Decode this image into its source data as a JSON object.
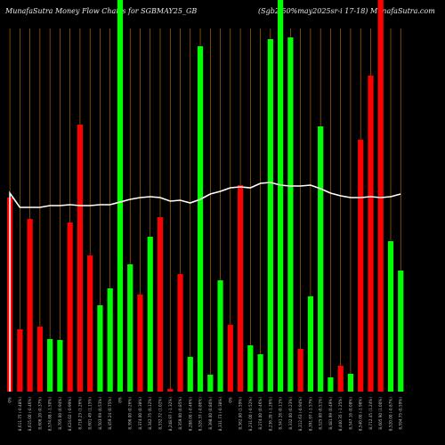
{
  "header": {
    "title": "MunafaSutra  Money Flow  Charts for SGBMAY25_GB",
    "right": "(Sgb2.50%may2025sr-i   17-18) MunafaSutra.com"
  },
  "colors": {
    "up": "#00ff00",
    "down": "#ff0000",
    "grid": "#c87800",
    "line": "#ffffff",
    "background": "#000000"
  },
  "chart_data": {
    "type": "bar",
    "title": "MunafaSutra  Money Flow  Charts for SGBMAY25_GB",
    "note": "bars = money flow (green up / red down), white line = price",
    "bars": [
      {
        "label": "0%",
        "value": 218,
        "dir": "down"
      },
      {
        "label": "8,611.75 (-0.48%)",
        "value": 70,
        "dir": "down"
      },
      {
        "label": "8,615.00 (-0.46%)",
        "value": 194,
        "dir": "down"
      },
      {
        "label": "8,606.20 (0.37%)",
        "value": 73,
        "dir": "down"
      },
      {
        "label": "8,574.88 (-1.50%)",
        "value": 59,
        "dir": "up"
      },
      {
        "label": "8,705.00 (0.94%)",
        "value": 58,
        "dir": "up"
      },
      {
        "label": "8,624.02 (-0.99%)",
        "value": 190,
        "dir": "down"
      },
      {
        "label": "8,710.23 (1.26%)",
        "value": 300,
        "dir": "down"
      },
      {
        "label": "8,601.49 (1.15%)",
        "value": 153,
        "dir": "down"
      },
      {
        "label": "8,503.69 (0.53%)",
        "value": 97,
        "dir": "up"
      },
      {
        "label": "8,459.24 (0.75%)",
        "value": 116,
        "dir": "up"
      },
      {
        "label": "0%",
        "value": 440,
        "dir": "up"
      },
      {
        "label": "8,396.00 (0.26%)",
        "value": 143,
        "dir": "up"
      },
      {
        "label": "8,374.00 (0.38%)",
        "value": 109,
        "dir": "down"
      },
      {
        "label": "8,342.75 (0.12%)",
        "value": 174,
        "dir": "up"
      },
      {
        "label": "8,332.72 (1.02%)",
        "value": 196,
        "dir": "down"
      },
      {
        "label": "8,248.97 (-1.32%)",
        "value": 3,
        "dir": "down"
      },
      {
        "label": "8,359.00 (0.85%)",
        "value": 132,
        "dir": "down"
      },
      {
        "label": "8,288.00 (-0.46%)",
        "value": 39,
        "dir": "up"
      },
      {
        "label": "8,326.37 (-0.86%)",
        "value": 388,
        "dir": "up"
      },
      {
        "label": "8,398.00 (0.80%)",
        "value": 19,
        "dir": "up"
      },
      {
        "label": "8,331.73 (-0.38%)",
        "value": 125,
        "dir": "up"
      },
      {
        "label": "0%",
        "value": 75,
        "dir": "down"
      },
      {
        "label": "8,362.00 (1.59%)",
        "value": 232,
        "dir": "down"
      },
      {
        "label": "8,231.00 (-0.52%)",
        "value": 52,
        "dir": "up"
      },
      {
        "label": "8,274.00 (0.46%)",
        "value": 42,
        "dir": "up"
      },
      {
        "label": "8,236.20 (-1.26%)",
        "value": 396,
        "dir": "up"
      },
      {
        "label": "8,341.26 (0.11%)",
        "value": 440,
        "dir": "up"
      },
      {
        "label": "8,332.00 (0.23%)",
        "value": 398,
        "dir": "up"
      },
      {
        "label": "8,312.63 (-0.94%)",
        "value": 48,
        "dir": "down"
      },
      {
        "label": "8,391.97 (-1.57%)",
        "value": 107,
        "dir": "up"
      },
      {
        "label": "8,525.00 (0.51%)",
        "value": 298,
        "dir": "up"
      },
      {
        "label": "8,481.99 (0.49%)",
        "value": 16,
        "dir": "up"
      },
      {
        "label": "8,440.35 (-1.25%)",
        "value": 29,
        "dir": "down"
      },
      {
        "label": "8,547.16 (0.08%)",
        "value": 20,
        "dir": "up"
      },
      {
        "label": "8,540.00 (-1.98%)",
        "value": 283,
        "dir": "down"
      },
      {
        "label": "8,712.45 (1.24%)",
        "value": 355,
        "dir": "down"
      },
      {
        "label": "8,605.90 (1.00%)",
        "value": 440,
        "dir": "down"
      },
      {
        "label": "8,520.00 (-0.87%)",
        "value": 169,
        "dir": "up"
      },
      {
        "label": "8,594.75 (0.59%)",
        "value": 136,
        "dir": "up"
      }
    ],
    "price_line": [
      217,
      233,
      233,
      233,
      231,
      231,
      230,
      231,
      231,
      230,
      230,
      227,
      224,
      222,
      221,
      222,
      226,
      225,
      228,
      224,
      218,
      215,
      211,
      210,
      211,
      206,
      205,
      208,
      209,
      209,
      208,
      212,
      217,
      220,
      222,
      222,
      221,
      222,
      221,
      218
    ],
    "y_scale": "relative"
  }
}
